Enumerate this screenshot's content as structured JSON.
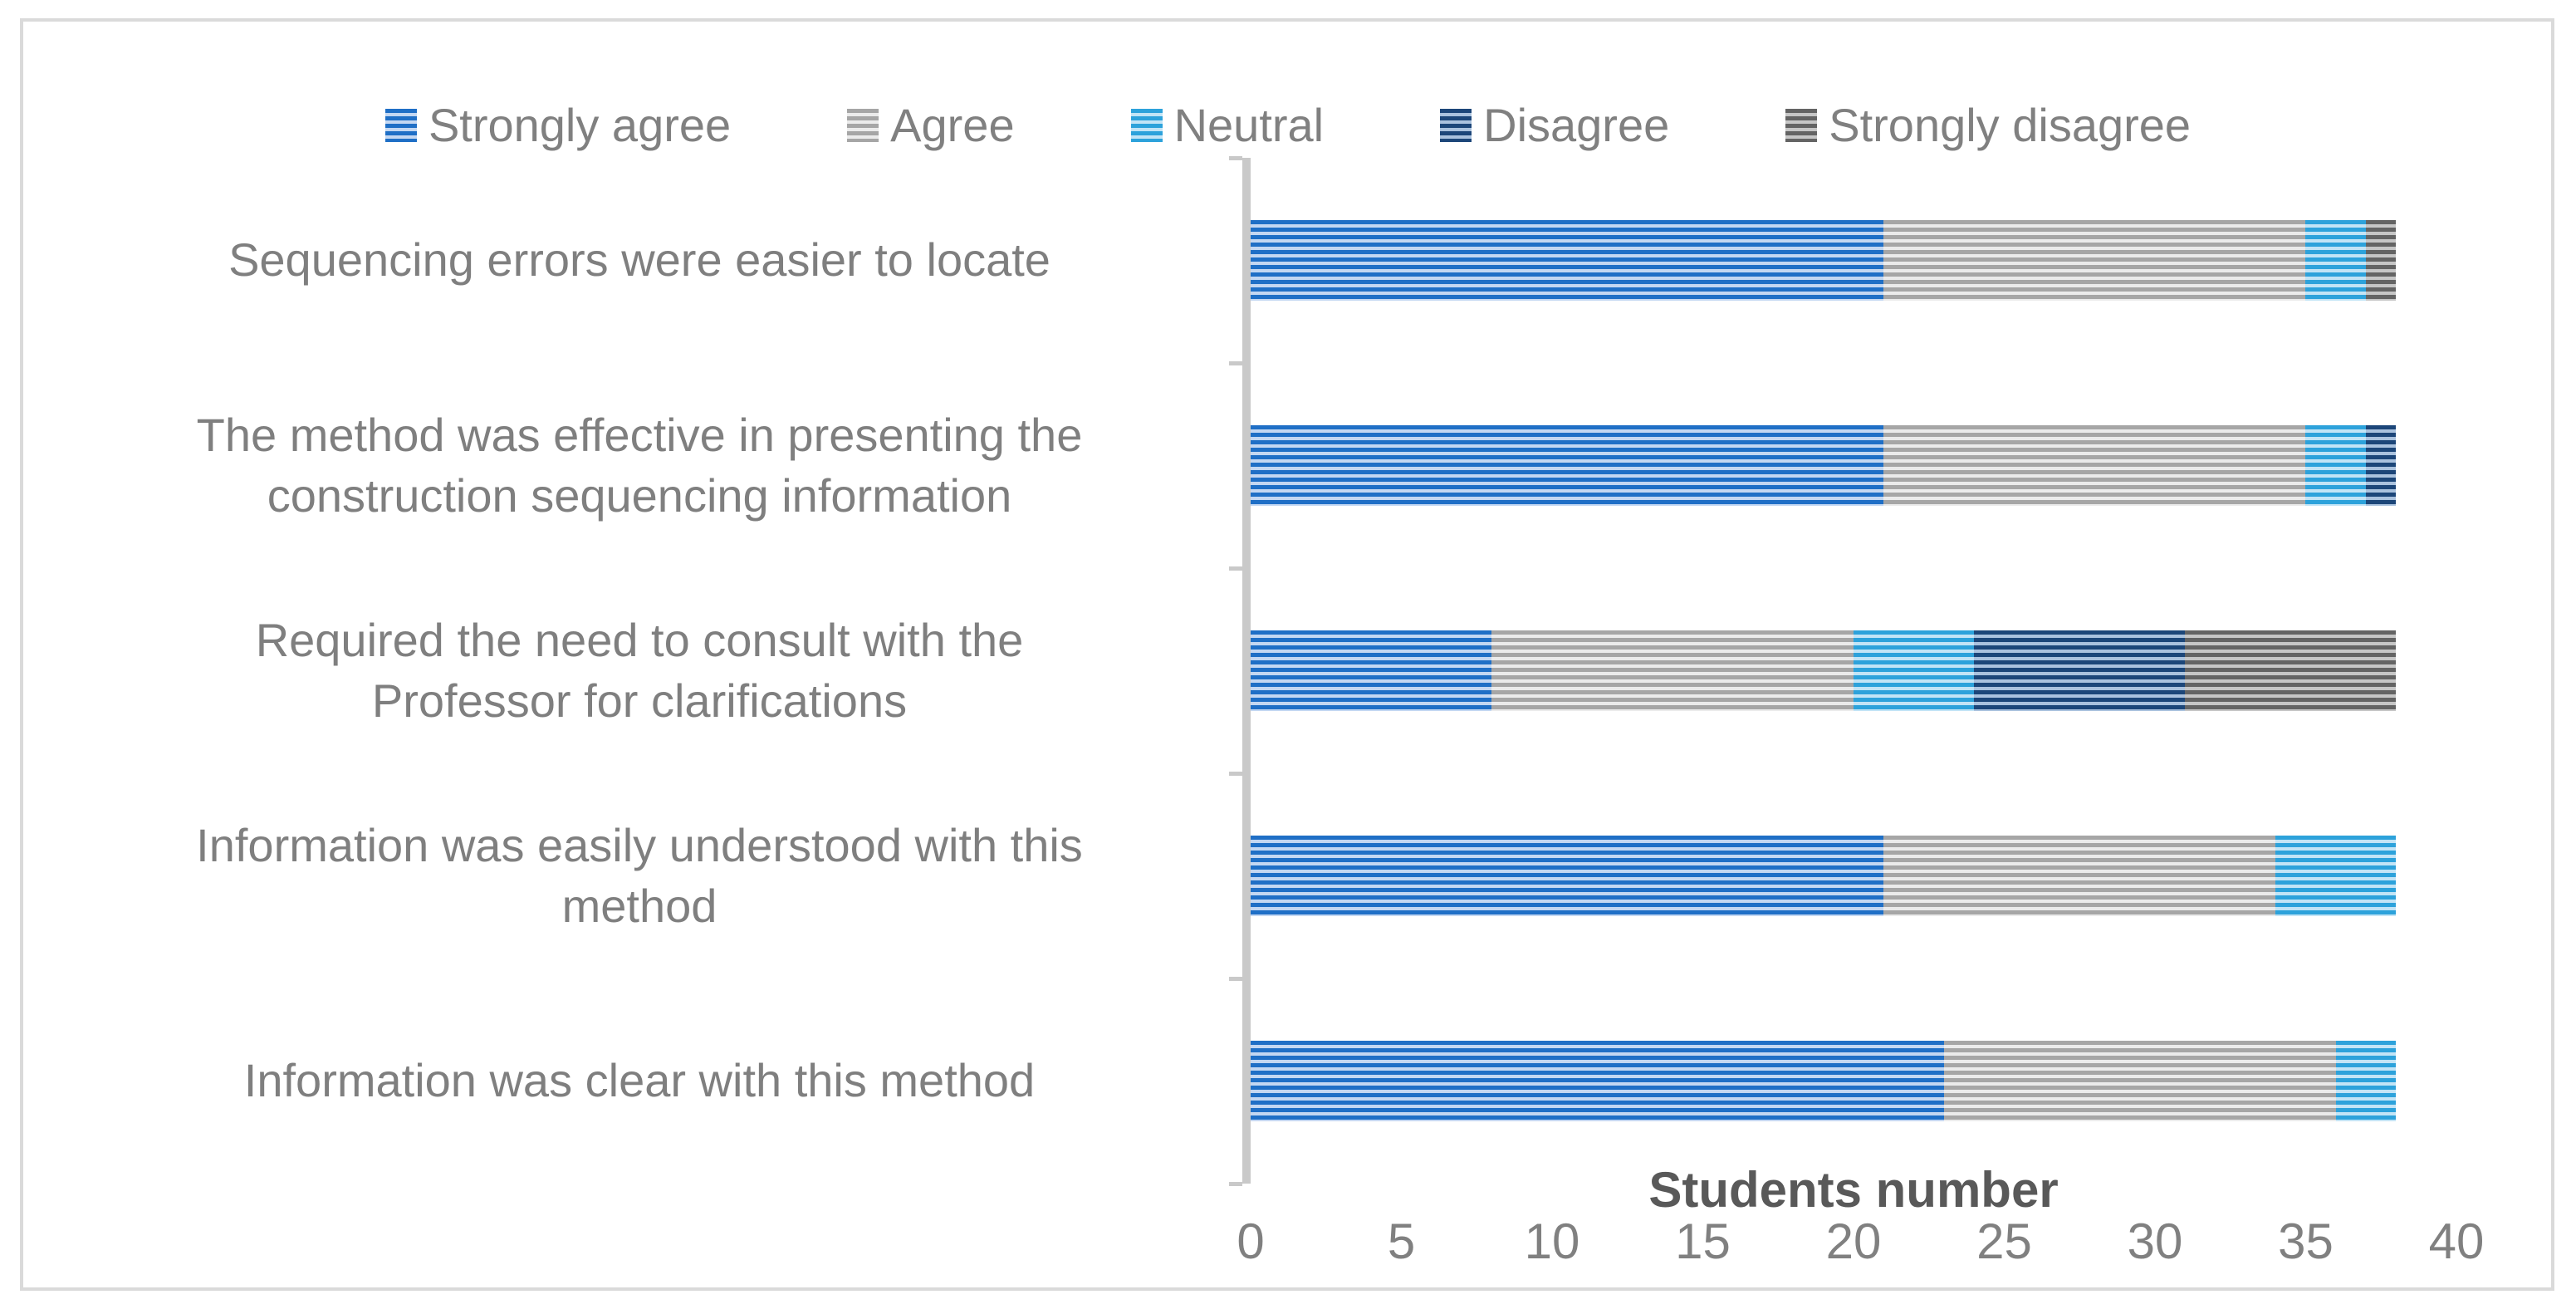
{
  "figure": {
    "background": "#FFFFFF",
    "border_color": "#DADADA",
    "label_color": "#7F7F7F",
    "tick_color": "#808080",
    "axis_title_color": "#595959",
    "axis_line_color": "#C9C9C9"
  },
  "chart_data": {
    "type": "bar",
    "orientation": "horizontal_stacked",
    "pattern": "horizontal-stripes",
    "title": "",
    "xlabel": "Students number",
    "xlim": [
      0,
      40
    ],
    "xticks": [
      0,
      5,
      10,
      15,
      20,
      25,
      30,
      35,
      40
    ],
    "legend_position": "top",
    "grid": false,
    "categories": [
      "Sequencing errors were easier to locate",
      "The method was effective in presenting the\nconstruction sequencing information",
      "Required the need to consult with the\nProfessor for clarifications",
      "Information was easily understood with this\nmethod",
      "Information was clear with this method"
    ],
    "series": [
      {
        "name": "Strongly agree",
        "color": "#1F6FC6",
        "stripe_light": "#C3D7F2",
        "values": [
          21,
          21,
          8,
          21,
          23
        ]
      },
      {
        "name": "Agree",
        "color": "#A6A6A6",
        "stripe_light": "#EBEBEB",
        "values": [
          14,
          14,
          12,
          13,
          13
        ]
      },
      {
        "name": "Neutral",
        "color": "#2DA2DB",
        "stripe_light": "#C2E4F6",
        "values": [
          2,
          2,
          4,
          4,
          2
        ]
      },
      {
        "name": "Disagree",
        "color": "#1C4679",
        "stripe_light": "#AAC2DE",
        "values": [
          0,
          1,
          7,
          0,
          0
        ]
      },
      {
        "name": "Strongly disagree",
        "color": "#646464",
        "stripe_light": "#C6C6C6",
        "values": [
          1,
          0,
          7,
          0,
          0
        ]
      }
    ],
    "totals": [
      38,
      38,
      38,
      38,
      38
    ]
  }
}
